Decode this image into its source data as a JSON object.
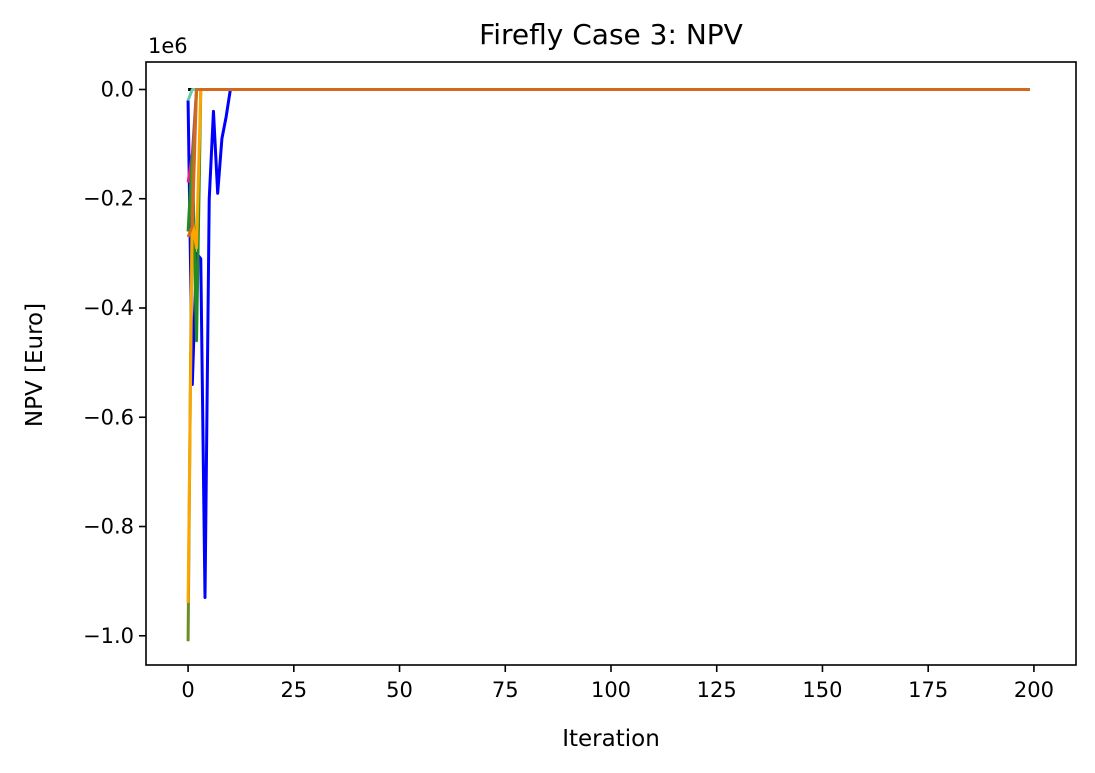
{
  "chart_data": {
    "type": "line",
    "title": "Firefly Case 3: NPV",
    "xlabel": "Iteration",
    "ylabel": "NPV [Euro]",
    "y_offset_label": "1e6",
    "xlim": [
      -9.95,
      209.95
    ],
    "ylim": [
      -1.0535,
      0.0503
    ],
    "x_ticks": [
      0,
      25,
      50,
      75,
      100,
      125,
      150,
      175,
      200
    ],
    "x_tick_labels": [
      "0",
      "25",
      "50",
      "75",
      "100",
      "125",
      "150",
      "175",
      "200"
    ],
    "y_ticks": [
      0.0,
      -0.2,
      -0.4,
      -0.6,
      -0.8,
      -1.0
    ],
    "y_tick_labels": [
      "0.0",
      "−0.2",
      "−0.4",
      "−0.6",
      "−0.8",
      "−1.0"
    ],
    "grid": false,
    "legend": "none",
    "series": [
      {
        "color": "#0000ff",
        "x": [
          0,
          1,
          2,
          3,
          4,
          5,
          6,
          7,
          8,
          9,
          10,
          199
        ],
        "y": [
          -0.02,
          -0.54,
          -0.3,
          -0.31,
          -0.93,
          -0.2,
          -0.04,
          -0.19,
          -0.09,
          -0.05,
          0.0,
          0.0
        ]
      },
      {
        "color": "#000000",
        "x": [
          0,
          1,
          199
        ],
        "y": [
          0.0,
          0.0,
          0.0
        ]
      },
      {
        "color": "#66cdaa",
        "x": [
          0,
          1,
          199
        ],
        "y": [
          -0.02,
          0.0,
          0.0
        ]
      },
      {
        "color": "#ff1493",
        "x": [
          0,
          1,
          2,
          199
        ],
        "y": [
          -0.17,
          -0.12,
          0.0,
          0.0
        ]
      },
      {
        "color": "#228b22",
        "x": [
          0,
          1,
          2,
          3,
          199
        ],
        "y": [
          -0.26,
          -0.12,
          -0.46,
          0.0,
          0.0
        ]
      },
      {
        "color": "#6b8e23",
        "x": [
          0,
          1,
          2,
          199
        ],
        "y": [
          -1.01,
          -0.15,
          0.0,
          0.0
        ]
      },
      {
        "color": "#ffa500",
        "x": [
          0,
          1,
          2,
          3,
          199
        ],
        "y": [
          -0.94,
          -0.24,
          -0.29,
          0.0,
          0.0
        ]
      },
      {
        "color": "#d2691e",
        "x": [
          0,
          1,
          2,
          199
        ],
        "y": [
          -0.27,
          -0.25,
          0.0,
          0.0
        ]
      }
    ]
  }
}
